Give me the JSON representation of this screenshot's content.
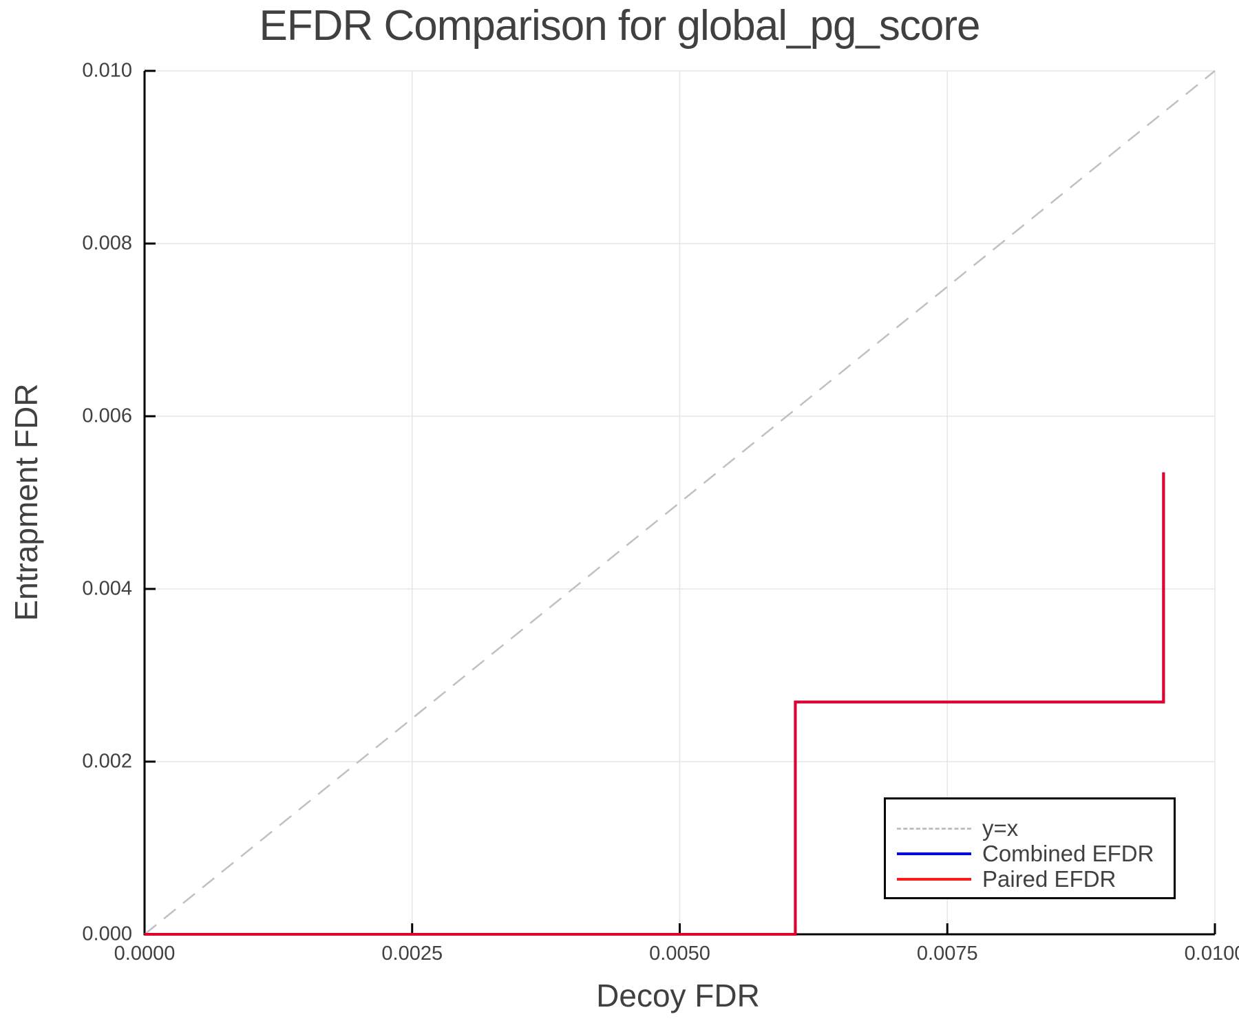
{
  "chart_data": {
    "type": "line",
    "title": "EFDR Comparison for global_pg_score",
    "xlabel": "Decoy FDR",
    "ylabel": "Entrapment FDR",
    "xlim": [
      0.0,
      0.01
    ],
    "ylim": [
      0.0,
      0.01
    ],
    "grid": true,
    "legend_position": "bottom-right",
    "xticks": [
      "0.0000",
      "0.0025",
      "0.0050",
      "0.0075",
      "0.0100"
    ],
    "yticks": [
      "0.000",
      "0.002",
      "0.004",
      "0.006",
      "0.008",
      "0.010"
    ],
    "series": [
      {
        "name": "y=x",
        "style": "dashed",
        "color": "#c0c0c0",
        "x": [
          0.0,
          0.01
        ],
        "y": [
          0.0,
          0.01
        ]
      },
      {
        "name": "Combined EFDR",
        "style": "solid",
        "color": "#0000ff",
        "x": [
          0.0,
          0.00608,
          0.00608,
          0.00952,
          0.00952
        ],
        "y": [
          0.0,
          0.0,
          0.00269,
          0.00269,
          0.00535
        ]
      },
      {
        "name": "Paired EFDR",
        "style": "solid",
        "color": "#ff0000",
        "x": [
          0.0,
          0.00608,
          0.00608,
          0.00952,
          0.00952
        ],
        "y": [
          0.0,
          0.0,
          0.00269,
          0.00269,
          0.00535
        ]
      }
    ]
  },
  "labels": {
    "title": "EFDR Comparison for global_pg_score",
    "xlabel": "Decoy FDR",
    "ylabel": "Entrapment FDR",
    "xticks": [
      "0.0000",
      "0.0025",
      "0.0050",
      "0.0075",
      "0.0100"
    ],
    "yticks": [
      "0.000",
      "0.002",
      "0.004",
      "0.006",
      "0.008",
      "0.010"
    ],
    "legend": [
      "y=x",
      "Combined EFDR",
      "Paired EFDR"
    ]
  },
  "colors": {
    "identity": "#c0c0c0",
    "combined": "#0000ff",
    "paired": "#ff0000",
    "overlap": "#e0002a",
    "grid": "#e6e6e6",
    "axis": "#000000"
  }
}
